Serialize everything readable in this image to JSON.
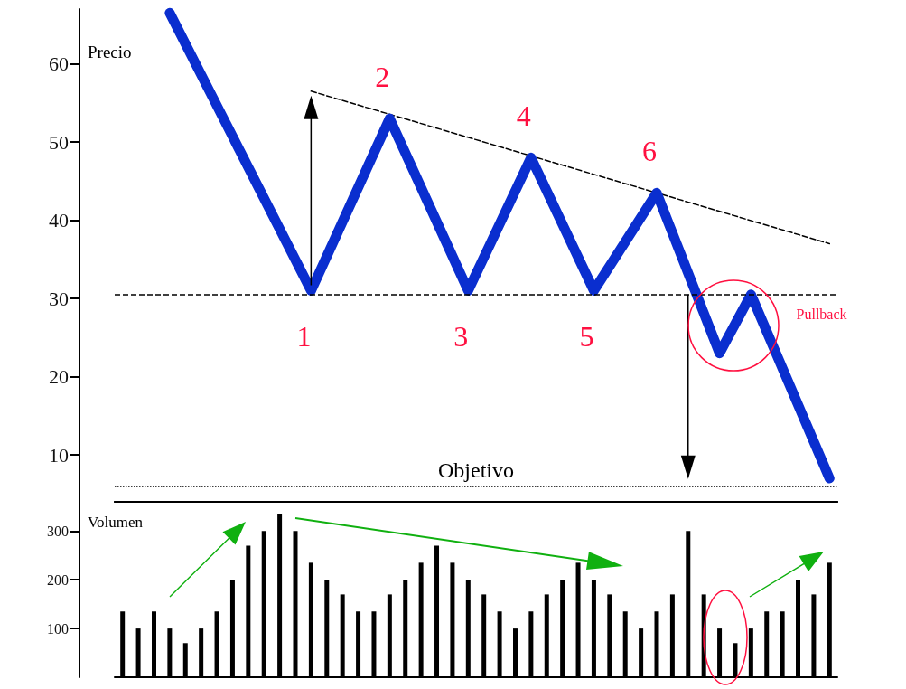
{
  "chart_data": [
    {
      "type": "line",
      "ylabel": "Precio",
      "categories": [
        null,
        null,
        null,
        null,
        null,
        null,
        null,
        null,
        null,
        null,
        null,
        null,
        null,
        null,
        null,
        null,
        null,
        null,
        null,
        null,
        null,
        null,
        null,
        null,
        null,
        null,
        null,
        null,
        null,
        null,
        null,
        null,
        null,
        null,
        null,
        null,
        null,
        null,
        null,
        null,
        null,
        null,
        null,
        null,
        null,
        null
      ],
      "ylim": [
        4,
        67
      ],
      "yticks": [
        10,
        20,
        30,
        40,
        50,
        60
      ],
      "tick_labels": "y",
      "marker": "none",
      "grid": false,
      "annotations": [
        "1",
        "2",
        "3",
        "4",
        "5",
        "6",
        "Pullback"
      ],
      "ref_lines": [
        {
          "axis": "y",
          "value": 30.5,
          "line_style": "dashed",
          "color": "#000000"
        },
        {
          "axis": "y",
          "value": 6,
          "label": "Objetivo",
          "line_style": "dotted",
          "color": "#000000"
        }
      ],
      "series": [
        {
          "color": "#0a2ecf",
          "line_style": "solid",
          "values": [
            null,
            null,
            null,
            66.5,
            null,
            null,
            null,
            null,
            null,
            null,
            null,
            null,
            31,
            null,
            null,
            null,
            null,
            53,
            null,
            null,
            null,
            null,
            31,
            null,
            null,
            null,
            48,
            null,
            null,
            null,
            31,
            null,
            null,
            null,
            43.5,
            null,
            null,
            null,
            23,
            null,
            30.5,
            null,
            null,
            null,
            null,
            7
          ]
        },
        {
          "color": "#000000",
          "line_style": "dashed",
          "values": [
            null,
            null,
            null,
            null,
            null,
            null,
            null,
            null,
            null,
            null,
            null,
            null,
            56.5,
            null,
            null,
            null,
            null,
            null,
            null,
            null,
            null,
            null,
            null,
            null,
            null,
            null,
            null,
            null,
            null,
            null,
            null,
            null,
            null,
            null,
            null,
            null,
            null,
            null,
            null,
            null,
            null,
            null,
            null,
            null,
            null,
            37
          ]
        }
      ]
    },
    {
      "type": "bar",
      "ylabel": "Volumen",
      "categories": [
        null,
        null,
        null,
        null,
        null,
        null,
        null,
        null,
        null,
        null,
        null,
        null,
        null,
        null,
        null,
        null,
        null,
        null,
        null,
        null,
        null,
        null,
        null,
        null,
        null,
        null,
        null,
        null,
        null,
        null,
        null,
        null,
        null,
        null,
        null,
        null,
        null,
        null,
        null,
        null,
        null,
        null,
        null,
        null,
        null,
        null
      ],
      "ylim": [
        0,
        360
      ],
      "yticks": [
        100,
        200,
        300
      ],
      "tick_labels": "y",
      "grid": false,
      "color": "#000000",
      "values": [
        135,
        100,
        135,
        100,
        70,
        100,
        135,
        200,
        270,
        300,
        335,
        300,
        235,
        200,
        170,
        135,
        135,
        170,
        200,
        235,
        270,
        235,
        200,
        170,
        135,
        100,
        135,
        170,
        200,
        235,
        200,
        170,
        135,
        100,
        135,
        170,
        300,
        170,
        100,
        70,
        100,
        135,
        135,
        200,
        170,
        235
      ]
    }
  ]
}
